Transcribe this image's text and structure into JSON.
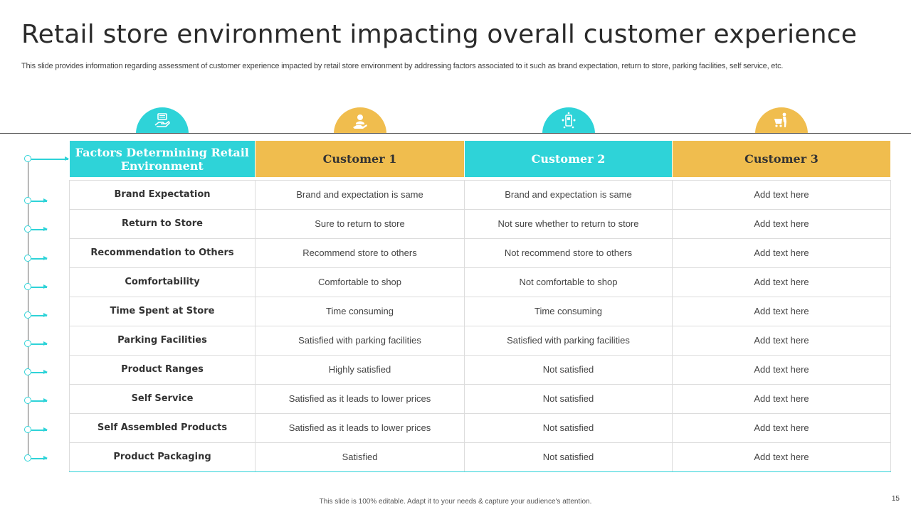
{
  "title": "Retail store environment impacting overall customer experience",
  "subtitle": "This slide provides information regarding assessment of customer experience impacted by retail store environment by addressing factors associated to it such as brand expectation, return to store, parking facilities, self service, etc.",
  "icons": [
    "money-hand-icon",
    "customer-service-icon",
    "mobile-shopping-icon",
    "shopping-cart-person-icon"
  ],
  "colors": {
    "teal": "#2ed3d8",
    "gold": "#f0bd4e"
  },
  "table": {
    "headers": [
      "Factors Determining Retail Environment",
      "Customer 1",
      "Customer 2",
      "Customer 3"
    ],
    "rows": [
      {
        "factor": "Brand Expectation",
        "c1": "Brand and expectation is same",
        "c2": "Brand and expectation is same",
        "c3": "Add text here"
      },
      {
        "factor": "Return  to Store",
        "c1": "Sure to return  to store",
        "c2": "Not sure whether to return to store",
        "c3": "Add text here"
      },
      {
        "factor": "Recommendation  to Others",
        "c1": "Recommend  store to others",
        "c2": "Not recommend store to others",
        "c3": "Add text here"
      },
      {
        "factor": "Comfortability",
        "c1": "Comfortable  to shop",
        "c2": "Not comfortable  to shop",
        "c3": "Add text here"
      },
      {
        "factor": "Time Spent at Store",
        "c1": "Time consuming",
        "c2": "Time consuming",
        "c3": "Add text here"
      },
      {
        "factor": "Parking  Facilities",
        "c1": "Satisfied with parking facilities",
        "c2": "Satisfied with parking facilities",
        "c3": "Add text here"
      },
      {
        "factor": "Product Ranges",
        "c1": "Highly satisfied",
        "c2": "Not satisfied",
        "c3": "Add text here"
      },
      {
        "factor": "Self Service",
        "c1": "Satisfied as it leads to lower  prices",
        "c2": "Not satisfied",
        "c3": "Add text here"
      },
      {
        "factor": "Self Assembled Products",
        "c1": "Satisfied as it leads to lower  prices",
        "c2": "Not satisfied",
        "c3": "Add text here"
      },
      {
        "factor": "Product Packaging",
        "c1": "Satisfied",
        "c2": "Not satisfied",
        "c3": "Add text here"
      }
    ]
  },
  "footer": "This slide is 100% editable.  Adapt it to your needs & capture your audience's attention.",
  "page_number": "15"
}
